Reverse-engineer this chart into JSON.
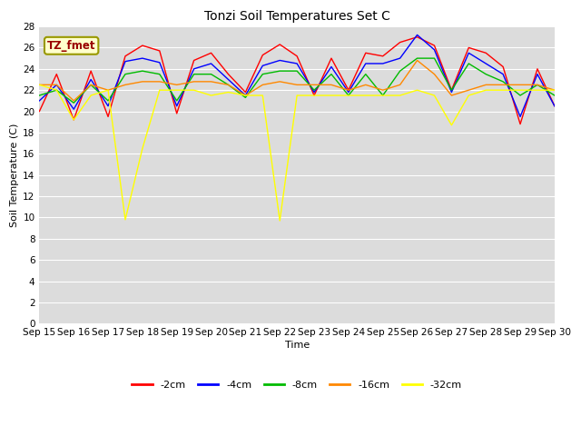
{
  "title": "Tonzi Soil Temperatures Set C",
  "xlabel": "Time",
  "ylabel": "Soil Temperature (C)",
  "annotation": "TZ_fmet",
  "ylim": [
    0,
    28
  ],
  "yticks": [
    0,
    2,
    4,
    6,
    8,
    10,
    12,
    14,
    16,
    18,
    20,
    22,
    24,
    26,
    28
  ],
  "x_labels": [
    "Sep 15",
    "Sep 16",
    "Sep 17",
    "Sep 18",
    "Sep 19",
    "Sep 20",
    "Sep 21",
    "Sep 22",
    "Sep 23",
    "Sep 24",
    "Sep 25",
    "Sep 26",
    "Sep 27",
    "Sep 28",
    "Sep 29",
    "Sep 30"
  ],
  "series": {
    "-2cm": [
      20.0,
      23.5,
      19.2,
      23.8,
      19.5,
      25.2,
      26.2,
      25.7,
      19.8,
      24.8,
      25.5,
      23.5,
      21.8,
      25.3,
      26.3,
      25.2,
      21.5,
      25.0,
      22.0,
      25.5,
      25.2,
      26.5,
      27.0,
      26.2,
      22.0,
      26.0,
      25.5,
      24.2,
      18.8,
      24.0,
      20.5
    ],
    "-4cm": [
      21.0,
      22.5,
      20.2,
      23.0,
      20.5,
      24.7,
      25.0,
      24.6,
      20.5,
      24.0,
      24.5,
      23.0,
      21.5,
      24.3,
      24.8,
      24.5,
      21.8,
      24.2,
      21.8,
      24.5,
      24.5,
      25.0,
      27.2,
      25.8,
      21.8,
      25.5,
      24.5,
      23.5,
      19.5,
      23.5,
      20.5
    ],
    "-8cm": [
      21.5,
      22.0,
      20.8,
      22.5,
      21.0,
      23.5,
      23.8,
      23.5,
      21.0,
      23.5,
      23.5,
      22.5,
      21.3,
      23.5,
      23.8,
      23.8,
      22.0,
      23.5,
      21.5,
      23.5,
      21.5,
      23.8,
      25.0,
      25.0,
      22.0,
      24.5,
      23.5,
      22.8,
      21.5,
      22.5,
      21.5
    ],
    "-16cm": [
      22.5,
      22.5,
      21.0,
      22.5,
      22.0,
      22.5,
      22.8,
      22.8,
      22.5,
      22.8,
      22.8,
      22.5,
      21.5,
      22.5,
      22.8,
      22.5,
      22.5,
      22.5,
      22.0,
      22.5,
      22.0,
      22.5,
      24.8,
      23.5,
      21.5,
      22.0,
      22.5,
      22.5,
      22.5,
      22.5,
      22.0
    ],
    "-32cm": [
      22.5,
      22.0,
      19.2,
      21.5,
      22.0,
      9.8,
      16.5,
      22.0,
      22.0,
      22.0,
      21.5,
      21.8,
      21.5,
      21.5,
      9.7,
      21.5,
      21.5,
      21.5,
      21.5,
      21.5,
      21.5,
      21.5,
      22.0,
      21.5,
      18.7,
      21.5,
      22.0,
      22.0,
      22.0,
      22.0,
      22.0
    ]
  },
  "colors": {
    "-2cm": "#ff0000",
    "-4cm": "#0000ff",
    "-8cm": "#00bb00",
    "-16cm": "#ff8800",
    "-32cm": "#ffff00"
  },
  "fig_bg": "#ffffff",
  "plot_bg": "#dcdcdc",
  "annotation_bg": "#ffffcc",
  "annotation_fg": "#990000",
  "annotation_border": "#999900"
}
